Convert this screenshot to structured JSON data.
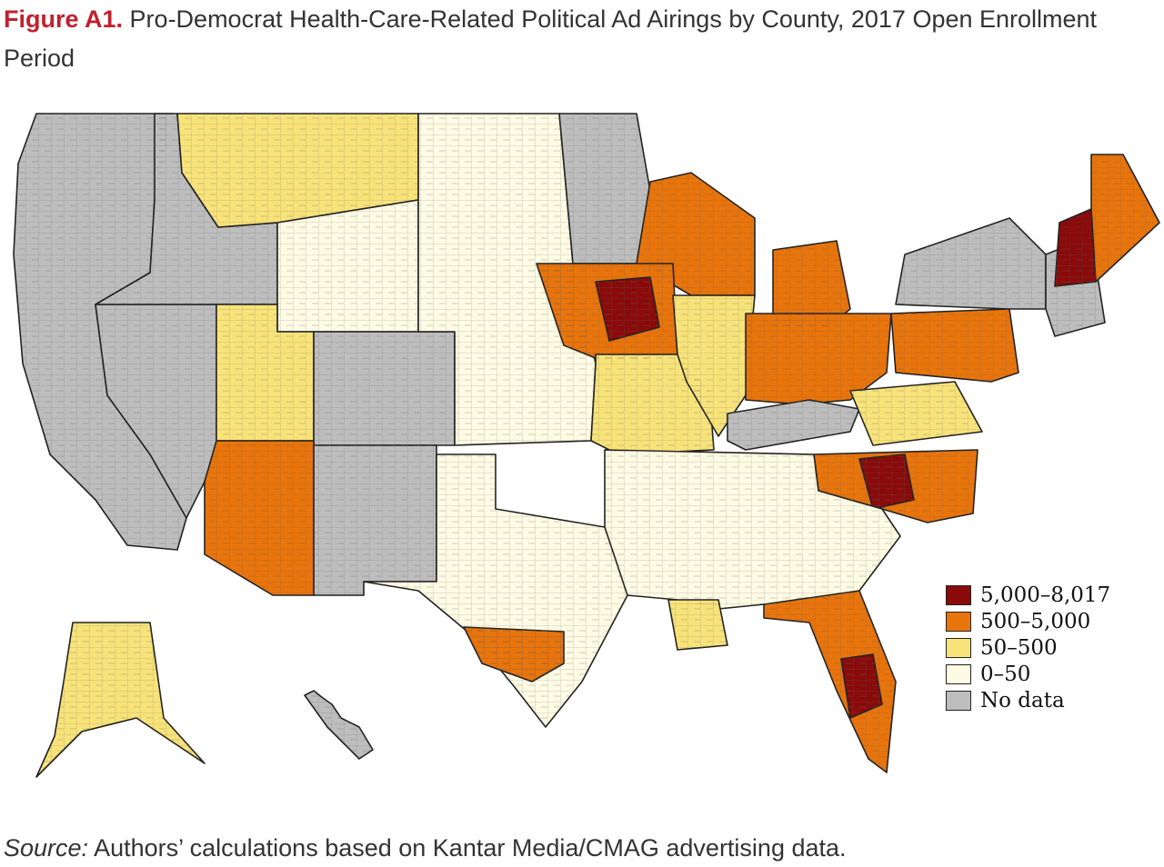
{
  "figure": {
    "label": "Figure A1.",
    "title": "Pro-Democrat Health-Care-Related Political Ad Airings by County, 2017 Open Enrollment Period"
  },
  "legend": {
    "items": [
      {
        "label": "5,000–8,017",
        "color": "#8b0a0a"
      },
      {
        "label": "500–5,000",
        "color": "#e8740c"
      },
      {
        "label": "50–500",
        "color": "#f8e37a"
      },
      {
        "label": "0–50",
        "color": "#fdfbe3"
      },
      {
        "label": "No data",
        "color": "#bdbdbd"
      }
    ]
  },
  "regions": [
    {
      "id": "west-coast",
      "category": "No data"
    },
    {
      "id": "nevada",
      "category": "No data"
    },
    {
      "id": "idaho",
      "category": "No data"
    },
    {
      "id": "montana",
      "category": "50–500"
    },
    {
      "id": "wyoming",
      "category": "0–50"
    },
    {
      "id": "utah",
      "category": "50–500"
    },
    {
      "id": "colorado",
      "category": "No data"
    },
    {
      "id": "arizona",
      "category": "500–5,000"
    },
    {
      "id": "new-mexico",
      "category": "No data"
    },
    {
      "id": "great-plains",
      "category": "0–50"
    },
    {
      "id": "minnesota",
      "category": "No data"
    },
    {
      "id": "wisconsin",
      "category": "500–5,000"
    },
    {
      "id": "iowa",
      "category": "500–5,000"
    },
    {
      "id": "central-iowa",
      "category": "5,000–8,017"
    },
    {
      "id": "missouri",
      "category": "50–500"
    },
    {
      "id": "illinois",
      "category": "50–500"
    },
    {
      "id": "michigan",
      "category": "500–5,000"
    },
    {
      "id": "indiana-ohio",
      "category": "500–5,000"
    },
    {
      "id": "kentucky",
      "category": "No data"
    },
    {
      "id": "pennsylvania",
      "category": "500–5,000"
    },
    {
      "id": "new-york",
      "category": "No data"
    },
    {
      "id": "new-england",
      "category": "No data"
    },
    {
      "id": "new-hampshire",
      "category": "5,000–8,017"
    },
    {
      "id": "maine",
      "category": "500–5,000"
    },
    {
      "id": "virginia",
      "category": "50–500"
    },
    {
      "id": "north-carolina",
      "category": "500–5,000"
    },
    {
      "id": "central-nc",
      "category": "5,000–8,017"
    },
    {
      "id": "south",
      "category": "0–50"
    },
    {
      "id": "texas",
      "category": "0–50"
    },
    {
      "id": "south-texas",
      "category": "500–5,000"
    },
    {
      "id": "louisiana",
      "category": "50–500"
    },
    {
      "id": "florida",
      "category": "500–5,000"
    },
    {
      "id": "tampa-florida",
      "category": "5,000–8,017"
    },
    {
      "id": "alaska",
      "category": "50–500"
    },
    {
      "id": "hawaii",
      "category": "No data"
    }
  ],
  "source": {
    "label": "Source:",
    "text": " Authors’ calculations based on Kantar Media/CMAG advertising data."
  }
}
